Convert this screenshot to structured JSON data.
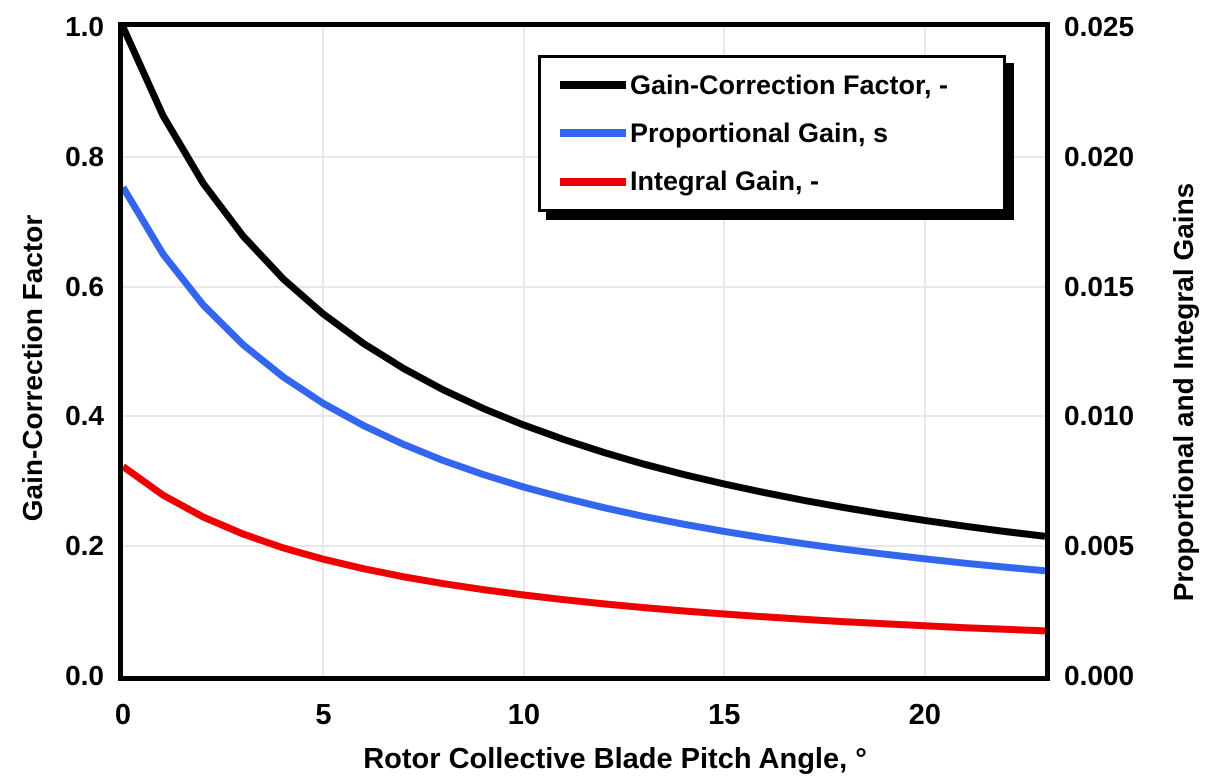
{
  "chart_data": {
    "type": "line",
    "title": "",
    "xlabel": "Rotor Collective Blade Pitch Angle, °",
    "ylabel_left": "Gain-Correction Factor",
    "ylabel_right": "Proportional and Integral Gains",
    "x_range": [
      0,
      23
    ],
    "y_left_range": [
      0,
      1.0
    ],
    "y_right_range": [
      0,
      0.025
    ],
    "x_ticks": [
      0,
      5,
      10,
      15,
      20
    ],
    "y_left_tick_labels": [
      "1.0",
      "0.8",
      "0.6",
      "0.4",
      "0.2",
      "0.0"
    ],
    "y_left_tick_values": [
      1.0,
      0.8,
      0.6,
      0.4,
      0.2,
      0.0
    ],
    "y_right_tick_labels": [
      "0.025",
      "0.020",
      "0.015",
      "0.010",
      "0.005",
      "0.000"
    ],
    "y_right_tick_values": [
      0.025,
      0.02,
      0.015,
      0.01,
      0.005,
      0.0
    ],
    "grid": true,
    "grid_color": "#e8e8e8",
    "legend_position": "top-center-inside",
    "x": [
      0,
      1,
      2,
      3,
      4,
      5,
      6,
      7,
      8,
      9,
      10,
      11,
      12,
      13,
      14,
      15,
      16,
      17,
      18,
      19,
      20,
      21,
      22,
      23
    ],
    "series": [
      {
        "name": "Gain-Correction Factor, -",
        "color": "#000000",
        "axis": "left",
        "values": [
          1.0,
          0.8631,
          0.7591,
          0.6775,
          0.6117,
          0.5576,
          0.5123,
          0.4738,
          0.4406,
          0.4119,
          0.3866,
          0.3643,
          0.3444,
          0.3264,
          0.3104,
          0.2958,
          0.2826,
          0.2704,
          0.2593,
          0.2491,
          0.2397,
          0.2308,
          0.2227,
          0.2152
        ]
      },
      {
        "name": "Proportional Gain, s",
        "color": "#3366ee",
        "axis": "right",
        "values": [
          0.018827,
          0.016249,
          0.014291,
          0.012755,
          0.011516,
          0.010498,
          0.009645,
          0.00892,
          0.008295,
          0.007755,
          0.007278,
          0.006859,
          0.006484,
          0.006145,
          0.005844,
          0.005569,
          0.00532,
          0.005091,
          0.004882,
          0.00469,
          0.004513,
          0.004345,
          0.004193,
          0.004052
        ]
      },
      {
        "name": "Integral Gain, -",
        "color": "#ee0000",
        "axis": "right",
        "values": [
          0.008069,
          0.006964,
          0.006125,
          0.005467,
          0.004936,
          0.004499,
          0.004134,
          0.003823,
          0.003555,
          0.003324,
          0.003119,
          0.002939,
          0.002779,
          0.002634,
          0.002504,
          0.002387,
          0.00228,
          0.002182,
          0.002092,
          0.00201,
          0.001934,
          0.001862,
          0.001797,
          0.001736
        ]
      }
    ]
  }
}
